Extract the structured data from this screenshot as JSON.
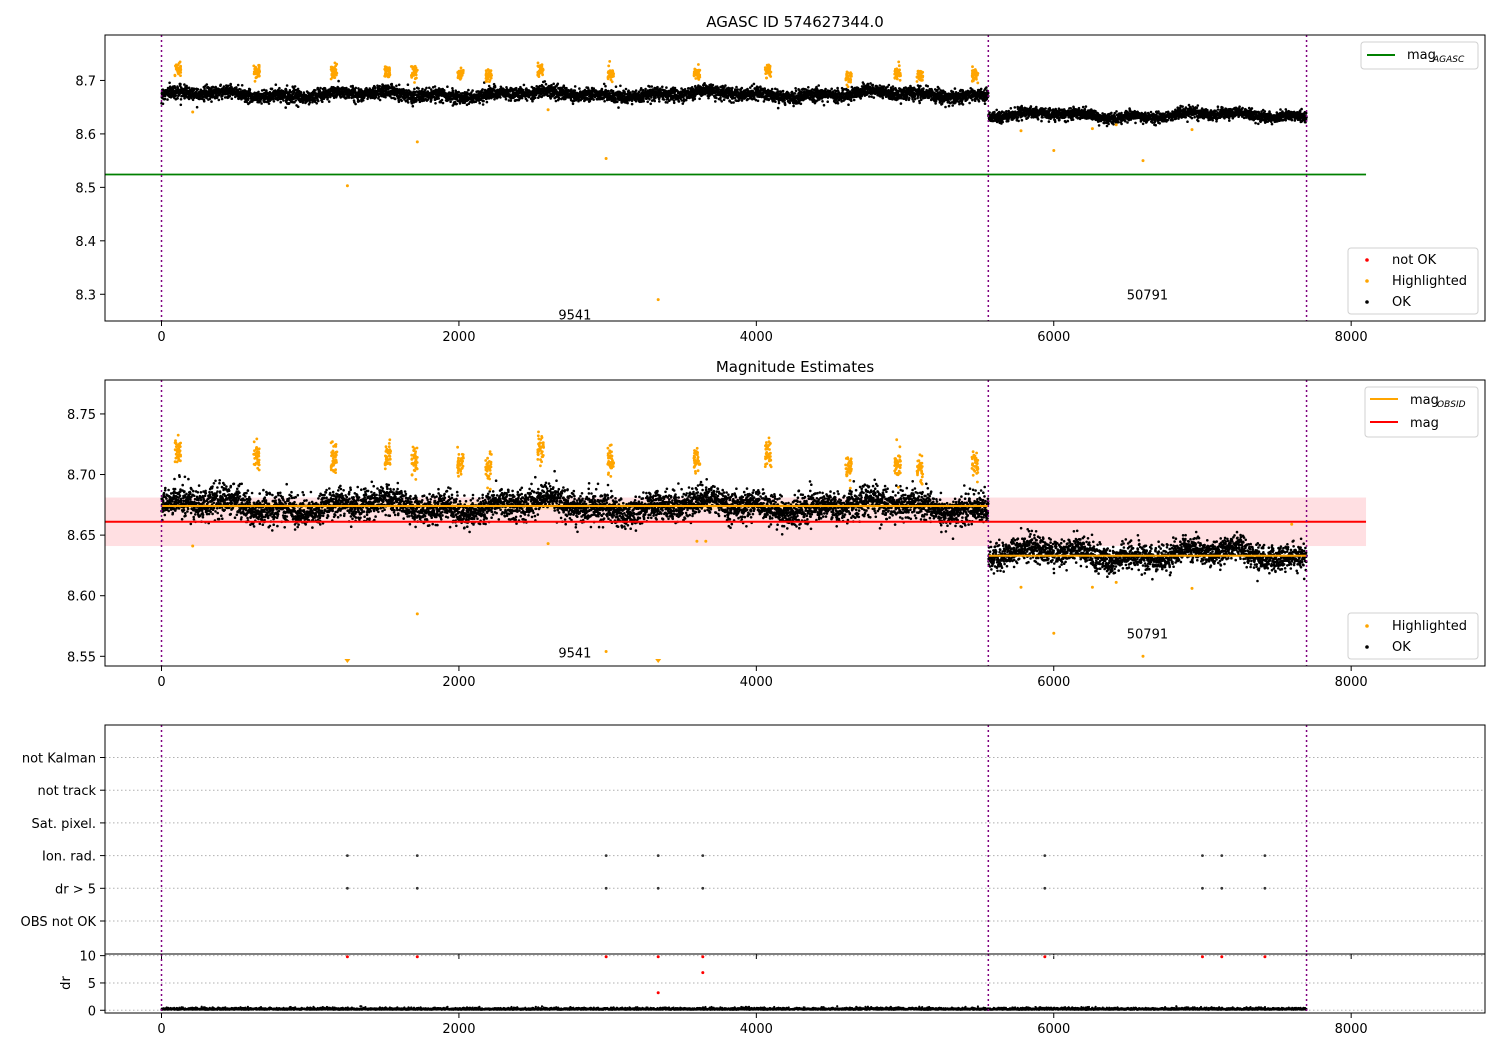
{
  "chart_data": [
    {
      "id": "p1",
      "type": "scatter",
      "title": "AGASC ID 574627344.0",
      "xlim": [
        -380,
        8900
      ],
      "ylim": [
        8.25,
        8.785
      ],
      "xticks": [
        0,
        2000,
        4000,
        6000,
        8000
      ],
      "yticks": [
        8.3,
        8.4,
        8.5,
        8.6,
        8.7
      ],
      "grid": false,
      "obsid_bounds": [
        0,
        5560,
        7700
      ],
      "obsid_labels": [
        {
          "text": "9541",
          "x": 2780,
          "y": 8.262
        },
        {
          "text": "50791",
          "x": 6630,
          "y": 8.3
        }
      ],
      "segments": [
        {
          "x_start": 0,
          "x_end": 5560,
          "mean": 8.674,
          "spread": 0.011
        },
        {
          "x_start": 5560,
          "x_end": 7700,
          "mean": 8.635,
          "spread": 0.009
        }
      ],
      "highlighted_clusters": [
        [
          110,
          8.721
        ],
        [
          640,
          8.718
        ],
        [
          1160,
          8.716
        ],
        [
          1520,
          8.716
        ],
        [
          1700,
          8.716
        ],
        [
          2010,
          8.712
        ],
        [
          2200,
          8.709
        ],
        [
          2550,
          8.72
        ],
        [
          3020,
          8.713
        ],
        [
          3600,
          8.713
        ],
        [
          4080,
          8.718
        ],
        [
          4620,
          8.706
        ],
        [
          4950,
          8.712
        ],
        [
          5100,
          8.71
        ],
        [
          5470,
          8.71
        ]
      ],
      "highlighted_outliers": [
        [
          1250,
          8.503
        ],
        [
          1720,
          8.585
        ],
        [
          2990,
          8.554
        ],
        [
          3340,
          8.29
        ],
        [
          6000,
          8.569
        ],
        [
          6600,
          8.55
        ],
        [
          210,
          8.641
        ],
        [
          2600,
          8.645
        ],
        [
          5780,
          8.606
        ],
        [
          6260,
          8.61
        ],
        [
          6930,
          8.608
        ],
        [
          6420,
          8.617
        ]
      ],
      "lines": [
        {
          "name": "mag_AGASC",
          "y": 8.524,
          "x_start": -380,
          "x_end": 8100,
          "color": "#008000"
        }
      ],
      "legend_lines": {
        "label": "mag",
        "sub": "AGASC",
        "placement": "upper right"
      },
      "legend_points": {
        "items": [
          "not OK",
          "Highlighted",
          "OK"
        ],
        "placement": "lower right"
      }
    },
    {
      "id": "p2",
      "type": "scatter",
      "title": "Magnitude Estimates",
      "xlim": [
        -380,
        8900
      ],
      "ylim": [
        8.542,
        8.778
      ],
      "xticks": [
        0,
        2000,
        4000,
        6000,
        8000
      ],
      "yticks": [
        8.55,
        8.6,
        8.65,
        8.7,
        8.75
      ],
      "grid": false,
      "obsid_bounds": [
        0,
        5560,
        7700
      ],
      "obsid_labels": [
        {
          "text": "9541",
          "x": 2780,
          "y": 8.553
        },
        {
          "text": "50791",
          "x": 6630,
          "y": 8.569
        }
      ],
      "segments": [
        {
          "x_start": 0,
          "x_end": 5560,
          "mean": 8.674,
          "spread": 0.011
        },
        {
          "x_start": 5560,
          "x_end": 7700,
          "mean": 8.634,
          "spread": 0.01
        }
      ],
      "highlighted_clusters": [
        [
          110,
          8.72
        ],
        [
          640,
          8.716
        ],
        [
          1160,
          8.714
        ],
        [
          1520,
          8.714
        ],
        [
          1700,
          8.712
        ],
        [
          2010,
          8.71
        ],
        [
          2200,
          8.706
        ],
        [
          2550,
          8.72
        ],
        [
          3020,
          8.712
        ],
        [
          3600,
          8.713
        ],
        [
          4080,
          8.717
        ],
        [
          4620,
          8.704
        ],
        [
          4950,
          8.71
        ],
        [
          5100,
          8.705
        ],
        [
          5470,
          8.708
        ]
      ],
      "highlighted_outliers": [
        [
          1720,
          8.585
        ],
        [
          2990,
          8.554
        ],
        [
          6000,
          8.569
        ],
        [
          6600,
          8.55
        ],
        [
          210,
          8.641
        ],
        [
          2600,
          8.643
        ],
        [
          5780,
          8.607
        ],
        [
          6260,
          8.607
        ],
        [
          6930,
          8.606
        ],
        [
          6420,
          8.611
        ],
        [
          3600,
          8.645
        ],
        [
          3660,
          8.645
        ],
        [
          7600,
          8.659
        ]
      ],
      "clipped_markers": [
        1250,
        3340
      ],
      "mag_band": {
        "low": 8.641,
        "high": 8.681,
        "x_start": -380,
        "x_end": 8100,
        "color": "#ffc0c6"
      },
      "obsid_band": {
        "x_start": 0,
        "x_end": 5560,
        "low": 8.671,
        "high": 8.677,
        "color": "#ffd9a8"
      },
      "lines": [
        {
          "name": "mag_OBSID_1",
          "y": 8.674,
          "x_start": 0,
          "x_end": 5560,
          "color": "#ffa500"
        },
        {
          "name": "mag_OBSID_2",
          "y": 8.633,
          "x_start": 5560,
          "x_end": 7700,
          "color": "#ffa500"
        },
        {
          "name": "mag",
          "y": 8.661,
          "x_start": -380,
          "x_end": 8100,
          "color": "#ff0000"
        }
      ],
      "legend_lines": {
        "items": [
          {
            "label": "mag",
            "sub": "OBSID",
            "color": "#ffa500"
          },
          {
            "label": "mag",
            "sub": "",
            "color": "#ff0000"
          }
        ],
        "placement": "upper right"
      },
      "legend_points": {
        "items": [
          "Highlighted",
          "OK"
        ],
        "placement": "lower right"
      }
    },
    {
      "id": "p3",
      "type": "scatter",
      "title": "",
      "xlim": [
        -380,
        8900
      ],
      "flag_rows": [
        "OBS not OK",
        "dr > 5",
        "Ion. rad.",
        "Sat. pixel.",
        "not track",
        "not Kalman"
      ],
      "flag_points": {
        "Ion. rad.": [
          1250,
          1720,
          2990,
          3340,
          3640,
          5940,
          7000,
          7130,
          7420
        ],
        "dr > 5": [
          1250,
          1720,
          2990,
          3340,
          3640,
          5940,
          7000,
          7130,
          7420
        ]
      },
      "obsid_bounds": [
        0,
        5560,
        7700
      ]
    },
    {
      "id": "p4",
      "type": "scatter",
      "title": "",
      "ylabel": "dr",
      "xlim": [
        -380,
        8900
      ],
      "ylim": [
        -0.5,
        10.3
      ],
      "xticks": [
        0,
        2000,
        4000,
        6000,
        8000
      ],
      "yticks": [
        0,
        5,
        10
      ],
      "dr_high_points": [
        [
          1250,
          9.8
        ],
        [
          1720,
          9.8
        ],
        [
          2990,
          9.8
        ],
        [
          3340,
          9.8
        ],
        [
          3640,
          9.8
        ],
        [
          5940,
          9.8
        ],
        [
          7000,
          9.8
        ],
        [
          7130,
          9.8
        ],
        [
          7420,
          9.8
        ],
        [
          3640,
          6.9
        ],
        [
          3340,
          3.2
        ]
      ],
      "obsid_bounds": [
        0,
        5560,
        7700
      ]
    }
  ],
  "legend_text": {
    "not_ok": "not OK",
    "highlighted": "Highlighted",
    "ok": "OK"
  },
  "colors": {
    "ok": "#000000",
    "highlighted": "#ffa500",
    "not_ok": "#ff0000",
    "bounds": "#800080"
  }
}
